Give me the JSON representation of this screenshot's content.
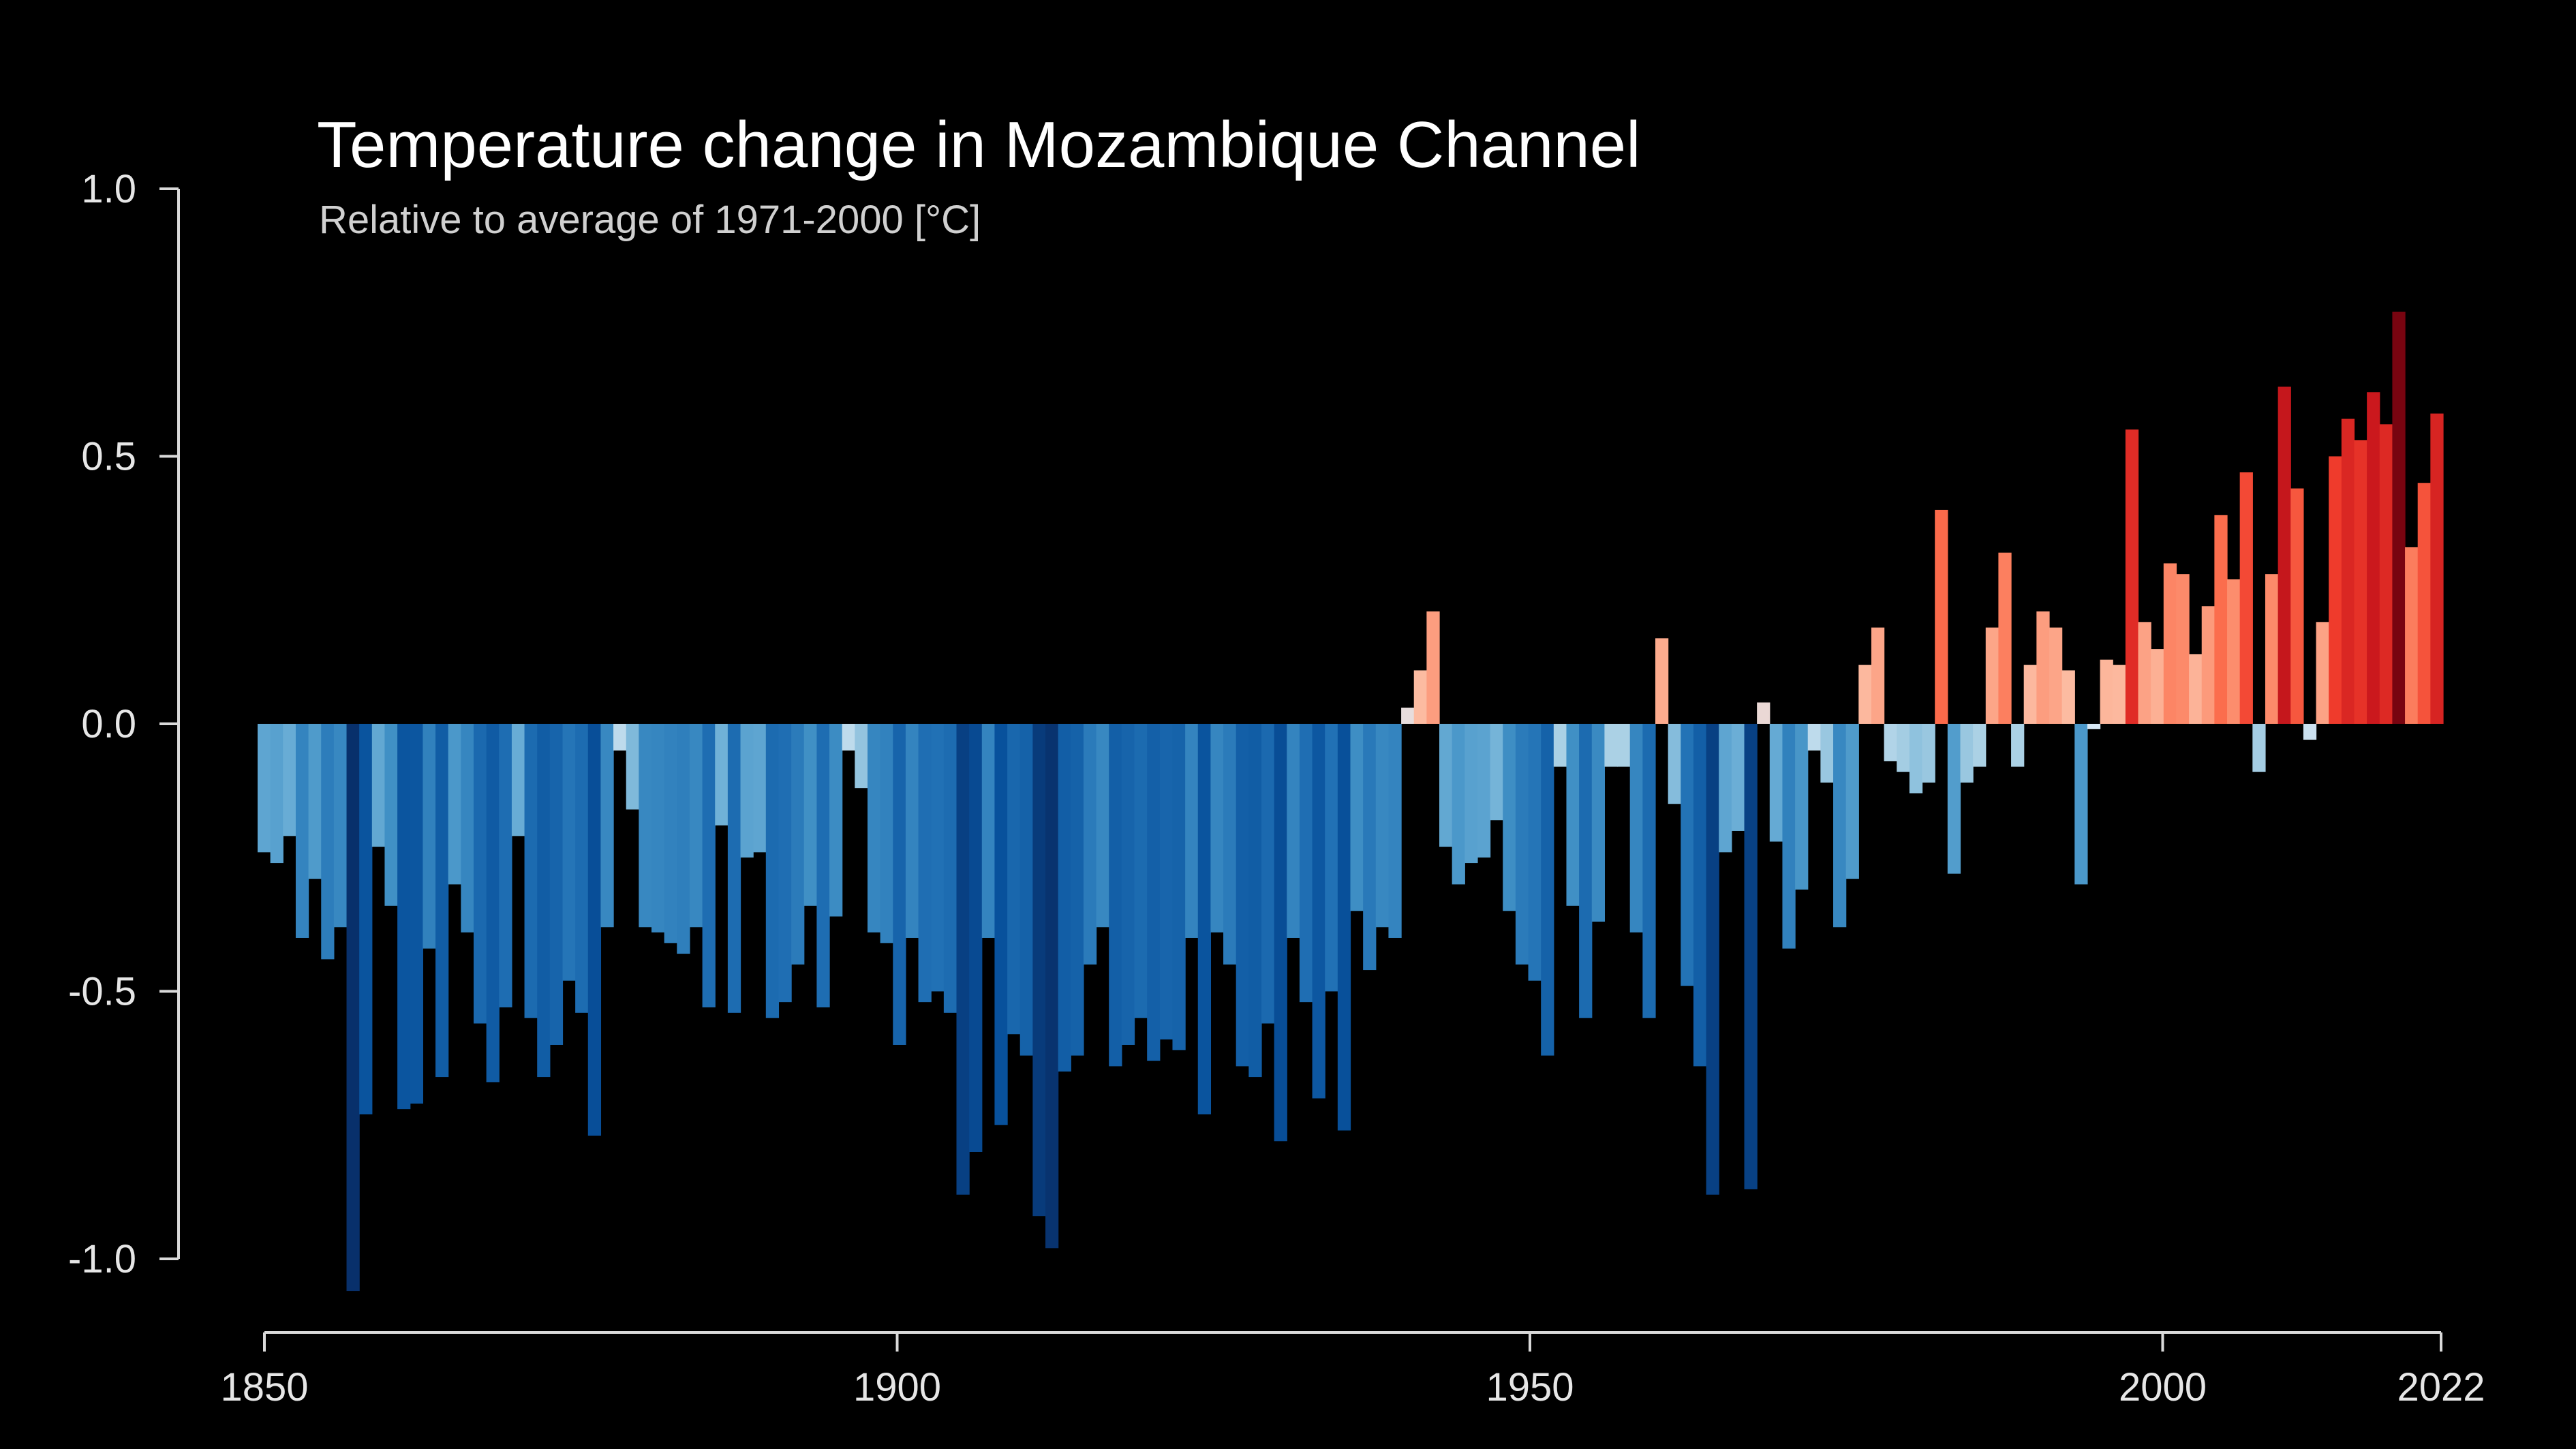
{
  "chart_data": {
    "type": "bar",
    "title": "Temperature change in Mozambique Channel",
    "subtitle": "Relative to average of 1971-2000  [°C]",
    "xlabel": "",
    "ylabel": "",
    "x_start": 1850,
    "x_end": 2022,
    "xlim": [
      1850,
      2022
    ],
    "ylim": [
      -1.05,
      1.0
    ],
    "y_ticks": [
      "1.0",
      "0.5",
      "0.0",
      "-0.5",
      "-1.0"
    ],
    "y_tick_values": [
      1.0,
      0.5,
      0.0,
      -0.5,
      -1.0
    ],
    "x_ticks": [
      "1850",
      "1900",
      "1950",
      "2000",
      "2022"
    ],
    "x_tick_values": [
      1850,
      1900,
      1950,
      2000,
      2022
    ],
    "grid": false,
    "legend": "none",
    "color_scale": "blue-to-red diverging (warming stripes)",
    "values": [
      -0.24,
      -0.26,
      -0.21,
      -0.4,
      -0.29,
      -0.44,
      -0.38,
      -1.06,
      -0.73,
      -0.23,
      -0.34,
      -0.72,
      -0.71,
      -0.42,
      -0.66,
      -0.3,
      -0.39,
      -0.56,
      -0.67,
      -0.53,
      -0.21,
      -0.55,
      -0.66,
      -0.6,
      -0.48,
      -0.54,
      -0.77,
      -0.38,
      -0.05,
      -0.16,
      -0.38,
      -0.39,
      -0.41,
      -0.43,
      -0.38,
      -0.53,
      -0.19,
      -0.54,
      -0.25,
      -0.24,
      -0.55,
      -0.52,
      -0.45,
      -0.34,
      -0.53,
      -0.36,
      -0.05,
      -0.12,
      -0.39,
      -0.41,
      -0.6,
      -0.4,
      -0.52,
      -0.5,
      -0.54,
      -0.88,
      -0.8,
      -0.4,
      -0.75,
      -0.58,
      -0.62,
      -0.92,
      -0.98,
      -0.65,
      -0.62,
      -0.45,
      -0.38,
      -0.64,
      -0.6,
      -0.55,
      -0.63,
      -0.59,
      -0.61,
      -0.4,
      -0.73,
      -0.39,
      -0.45,
      -0.64,
      -0.66,
      -0.56,
      -0.78,
      -0.4,
      -0.52,
      -0.7,
      -0.5,
      -0.76,
      -0.35,
      -0.46,
      -0.38,
      -0.4,
      0.03,
      0.1,
      0.21,
      -0.23,
      -0.3,
      -0.26,
      -0.25,
      -0.18,
      -0.35,
      -0.45,
      -0.48,
      -0.62,
      -0.08,
      -0.34,
      -0.55,
      -0.37,
      -0.08,
      -0.08,
      -0.39,
      -0.55,
      0.16,
      -0.15,
      -0.49,
      -0.64,
      -0.88,
      -0.24,
      -0.2,
      -0.87,
      0.04,
      -0.22,
      -0.42,
      -0.31,
      -0.05,
      -0.11,
      -0.38,
      -0.29,
      0.11,
      0.18,
      -0.07,
      -0.09,
      -0.13,
      -0.11,
      0.4,
      -0.28,
      -0.11,
      -0.08,
      0.18,
      0.32,
      -0.08,
      0.11,
      0.21,
      0.18,
      0.1,
      -0.3,
      -0.01,
      0.12,
      0.11,
      0.55,
      0.19,
      0.14,
      0.3,
      0.28,
      0.13,
      0.22,
      0.39,
      0.27,
      0.47,
      -0.09,
      0.28,
      0.63,
      0.44,
      -0.03,
      0.19,
      0.5,
      0.57,
      0.53,
      0.62,
      0.56,
      0.77,
      0.33,
      0.45,
      0.58
    ]
  }
}
